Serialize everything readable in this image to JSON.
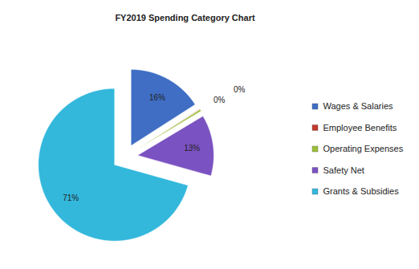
{
  "chart_data": {
    "type": "pie",
    "title": "FY2019 Spending Category Chart",
    "categories": [
      "Wages & Salaries",
      "Employee Benefits",
      "Operating Expenses",
      "Safety Net",
      "Grants & Subsidies"
    ],
    "values": [
      16,
      0.1,
      0.4,
      13,
      71
    ],
    "value_labels": [
      "16%",
      "0%",
      "0%",
      "13%",
      "71%"
    ],
    "colors": [
      "#3f6ec4",
      "#c0392b",
      "#9bbf3a",
      "#7b52c1",
      "#33b8dc"
    ],
    "data_labels": true,
    "legend": "right"
  }
}
